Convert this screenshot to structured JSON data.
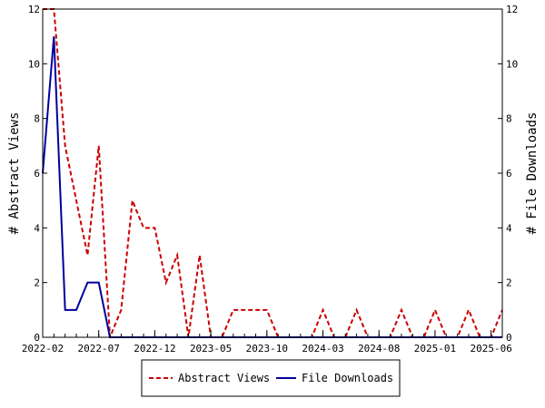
{
  "chart_data": {
    "type": "line",
    "x": [
      "2022-02",
      "2022-03",
      "2022-04",
      "2022-05",
      "2022-06",
      "2022-07",
      "2022-08",
      "2022-09",
      "2022-10",
      "2022-11",
      "2022-12",
      "2023-01",
      "2023-02",
      "2023-03",
      "2023-04",
      "2023-05",
      "2023-06",
      "2023-07",
      "2023-08",
      "2023-09",
      "2023-10",
      "2023-11",
      "2023-12",
      "2024-01",
      "2024-02",
      "2024-03",
      "2024-04",
      "2024-05",
      "2024-06",
      "2024-07",
      "2024-08",
      "2024-09",
      "2024-10",
      "2024-11",
      "2024-12",
      "2025-01",
      "2025-02",
      "2025-03",
      "2025-04",
      "2025-05",
      "2025-06",
      "2025-07"
    ],
    "series": [
      {
        "name": "Abstract Views",
        "axis": "left",
        "color": "#cc0000",
        "dash": "dashed",
        "values": [
          12,
          12,
          7,
          5,
          3,
          7,
          0,
          1,
          5,
          4,
          4,
          2,
          3,
          0,
          3,
          0,
          0,
          1,
          1,
          1,
          1,
          0,
          0,
          0,
          0,
          1,
          0,
          0,
          1,
          0,
          0,
          0,
          1,
          0,
          0,
          1,
          0,
          0,
          1,
          0,
          0,
          1
        ]
      },
      {
        "name": "File Downloads",
        "axis": "right",
        "color": "#00009c",
        "dash": "solid",
        "values": [
          6,
          11,
          1,
          1,
          2,
          2,
          0,
          0,
          0,
          0,
          0,
          0,
          0,
          0,
          0,
          0,
          0,
          0,
          0,
          0,
          0,
          0,
          0,
          0,
          0,
          0,
          0,
          0,
          0,
          0,
          0,
          0,
          0,
          0,
          0,
          0,
          0,
          0,
          0,
          0,
          0,
          0
        ]
      }
    ],
    "x_tick_labels": [
      "2022-02",
      "2022-07",
      "2022-12",
      "2023-05",
      "2023-10",
      "2024-03",
      "2024-08",
      "2025-01",
      "2025-06"
    ],
    "ylabel_left": "# Abstract Views",
    "ylabel_right": "# File Downloads",
    "ylim": [
      0,
      12
    ],
    "y_ticks": [
      0,
      2,
      4,
      6,
      8,
      10,
      12
    ],
    "legend_position": "bottom",
    "grid": false
  }
}
